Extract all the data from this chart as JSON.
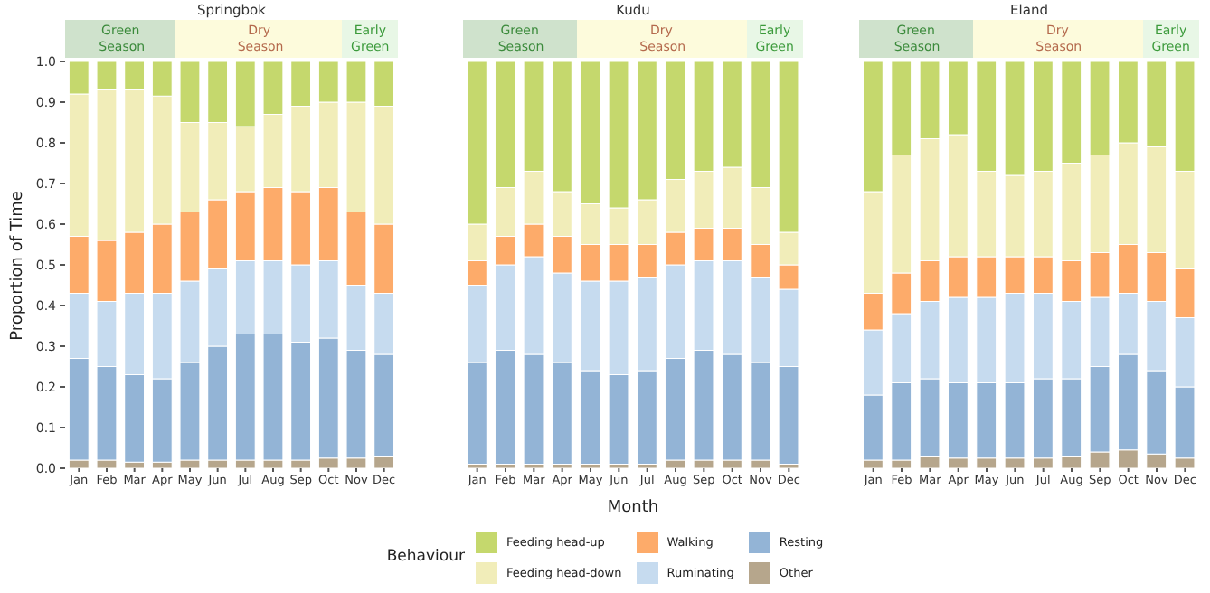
{
  "chart_data": [
    {
      "type": "bar",
      "title": "Springbok",
      "ylabel": "Proportion of Time",
      "stacked": true,
      "categories": [
        "Jan",
        "Feb",
        "Mar",
        "Apr",
        "May",
        "Jun",
        "Jul",
        "Aug",
        "Sep",
        "Oct",
        "Nov",
        "Dec"
      ],
      "ylim": [
        0,
        1
      ],
      "yticks": [
        {
          "value": 0,
          "label": "0.0"
        },
        0.1,
        0.2,
        0.3,
        0.4,
        0.5,
        0.6,
        0.7,
        0.8,
        0.9,
        {
          "value": 1,
          "label": "1.0"
        }
      ],
      "annotations": [
        "Green Season",
        "Dry Season",
        "Early Green"
      ],
      "series": [
        {
          "color": "#b6a68c",
          "values": [
            0.02,
            0.02,
            0.015,
            0.015,
            0.02,
            0.02,
            0.02,
            0.02,
            0.02,
            0.025,
            0.025,
            0.03
          ]
        },
        {
          "color": "#93b4d6",
          "values": [
            0.25,
            0.23,
            0.215,
            0.205,
            0.24,
            0.28,
            0.31,
            0.31,
            0.29,
            0.295,
            0.265,
            0.25
          ]
        },
        {
          "color": "#c6dbef",
          "values": [
            0.16,
            0.16,
            0.2,
            0.21,
            0.2,
            0.19,
            0.18,
            0.18,
            0.19,
            0.19,
            0.16,
            0.15
          ]
        },
        {
          "color": "#fdab6a",
          "values": [
            0.14,
            0.15,
            0.15,
            0.17,
            0.17,
            0.17,
            0.17,
            0.18,
            0.18,
            0.18,
            0.18,
            0.17
          ]
        },
        {
          "color": "#f1edb9",
          "values": [
            0.35,
            0.37,
            0.35,
            0.315,
            0.22,
            0.19,
            0.16,
            0.18,
            0.21,
            0.21,
            0.27,
            0.29
          ]
        },
        {
          "color": "#c5d86d",
          "values": [
            0.08,
            0.07,
            0.07,
            0.085,
            0.15,
            0.15,
            0.16,
            0.13,
            0.11,
            0.1,
            0.1,
            0.11
          ]
        }
      ]
    },
    {
      "type": "bar",
      "title": "Kudu",
      "xlabel": "Month",
      "legend": "bottom",
      "legend_title": "Behaviour",
      "tick_labels": "x",
      "stacked": true,
      "categories": [
        "Jan",
        "Feb",
        "Mar",
        "Apr",
        "May",
        "Jun",
        "Jul",
        "Aug",
        "Sep",
        "Oct",
        "Nov",
        "Dec"
      ],
      "ylim": [
        0,
        1
      ],
      "annotations": [
        "Green Season",
        "Dry Season",
        "Early Green"
      ],
      "series": [
        {
          "name": "Other",
          "color": "#b6a68c",
          "values": [
            0.01,
            0.01,
            0.01,
            0.01,
            0.01,
            0.01,
            0.01,
            0.02,
            0.02,
            0.02,
            0.02,
            0.01
          ]
        },
        {
          "name": "Resting",
          "color": "#93b4d6",
          "values": [
            0.25,
            0.28,
            0.27,
            0.25,
            0.23,
            0.22,
            0.23,
            0.25,
            0.27,
            0.26,
            0.24,
            0.24
          ]
        },
        {
          "name": "Ruminating",
          "color": "#c6dbef",
          "values": [
            0.19,
            0.21,
            0.24,
            0.22,
            0.22,
            0.23,
            0.23,
            0.23,
            0.22,
            0.23,
            0.21,
            0.19
          ]
        },
        {
          "name": "Walking",
          "color": "#fdab6a",
          "values": [
            0.06,
            0.07,
            0.08,
            0.09,
            0.09,
            0.09,
            0.08,
            0.08,
            0.08,
            0.08,
            0.08,
            0.06
          ]
        },
        {
          "name": "Feeding head-down",
          "color": "#f1edb9",
          "values": [
            0.09,
            0.12,
            0.13,
            0.11,
            0.1,
            0.09,
            0.11,
            0.13,
            0.14,
            0.15,
            0.14,
            0.08
          ]
        },
        {
          "name": "Feeding head-up",
          "color": "#c5d86d",
          "values": [
            0.4,
            0.31,
            0.27,
            0.32,
            0.35,
            0.36,
            0.34,
            0.29,
            0.27,
            0.26,
            0.31,
            0.42
          ]
        }
      ]
    },
    {
      "type": "bar",
      "title": "Eland",
      "tick_labels": "x",
      "stacked": true,
      "categories": [
        "Jan",
        "Feb",
        "Mar",
        "Apr",
        "May",
        "Jun",
        "Jul",
        "Aug",
        "Sep",
        "Oct",
        "Nov",
        "Dec"
      ],
      "ylim": [
        0,
        1
      ],
      "annotations": [
        "Green Season",
        "Dry Season",
        "Early Green"
      ],
      "series": [
        {
          "color": "#b6a68c",
          "values": [
            0.02,
            0.02,
            0.03,
            0.025,
            0.025,
            0.025,
            0.025,
            0.03,
            0.04,
            0.045,
            0.035,
            0.025
          ]
        },
        {
          "color": "#93b4d6",
          "values": [
            0.16,
            0.19,
            0.19,
            0.185,
            0.185,
            0.185,
            0.195,
            0.19,
            0.21,
            0.235,
            0.205,
            0.175
          ]
        },
        {
          "color": "#c6dbef",
          "values": [
            0.16,
            0.17,
            0.19,
            0.21,
            0.21,
            0.22,
            0.21,
            0.19,
            0.17,
            0.15,
            0.17,
            0.17
          ]
        },
        {
          "color": "#fdab6a",
          "values": [
            0.09,
            0.1,
            0.1,
            0.1,
            0.1,
            0.09,
            0.09,
            0.1,
            0.11,
            0.12,
            0.12,
            0.12
          ]
        },
        {
          "color": "#f1edb9",
          "values": [
            0.25,
            0.29,
            0.3,
            0.3,
            0.21,
            0.2,
            0.21,
            0.24,
            0.24,
            0.25,
            0.26,
            0.24
          ]
        },
        {
          "color": "#c5d86d",
          "values": [
            0.32,
            0.23,
            0.19,
            0.18,
            0.27,
            0.28,
            0.27,
            0.25,
            0.23,
            0.2,
            0.21,
            0.27
          ]
        }
      ]
    }
  ]
}
